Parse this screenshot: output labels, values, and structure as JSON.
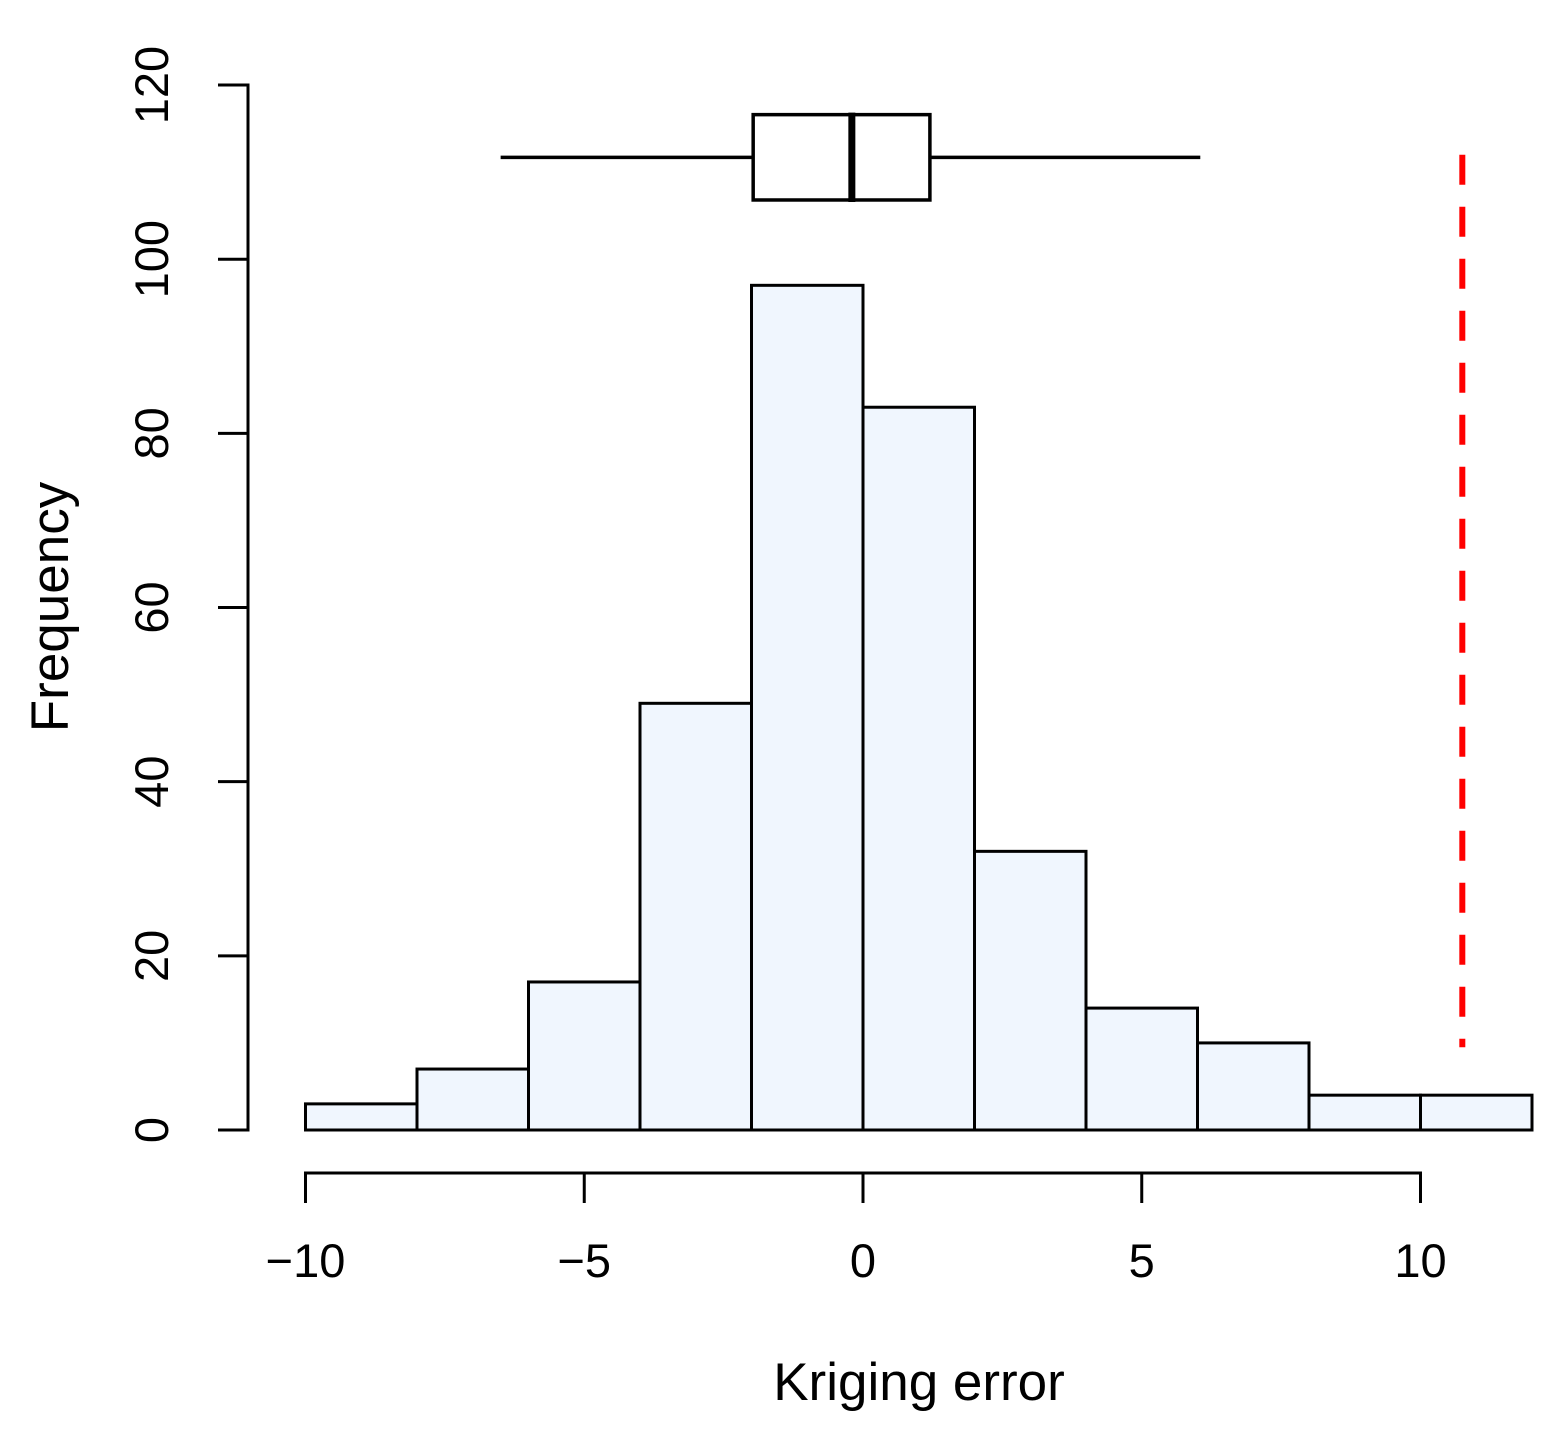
{
  "chart_data": {
    "type": "histogram",
    "title": "",
    "xlabel": "Kriging error",
    "ylabel": "Frequency",
    "xlim": [
      -10,
      12
    ],
    "ylim": [
      0,
      120
    ],
    "grid": false,
    "bin_start": -10,
    "bin_width": 2,
    "categories": [
      "[-10,-8]",
      "[-8,-6]",
      "[-6,-4]",
      "[-4,-2]",
      "[-2,0]",
      "[0,2]",
      "[2,4]",
      "[4,6]",
      "[6,8]",
      "[8,10]",
      "[10,12]"
    ],
    "values": [
      3,
      7,
      17,
      49,
      97,
      83,
      32,
      14,
      10,
      4,
      4
    ],
    "x_tick_values": [
      -10,
      -5,
      0,
      5,
      10
    ],
    "x_tick_labels": [
      "−10",
      "−5",
      "0",
      "5",
      "10"
    ],
    "y_tick_values": [
      0,
      20,
      40,
      60,
      80,
      100,
      120
    ],
    "y_tick_labels": [
      "0",
      "20",
      "40",
      "60",
      "80",
      "100",
      "120"
    ],
    "colors": {
      "bar_fill": "#F0F6FE",
      "bar_stroke": "#000000",
      "axis": "#000000",
      "boxplot_fill": "#FFFFFF",
      "vline": "#FF0000"
    },
    "boxplot": {
      "whisker_low": -6.5,
      "q1": -1.97,
      "median": -0.2,
      "q3": 1.2,
      "whisker_high": 6.05,
      "center_y": 111.7,
      "box_half_height": 4.9
    },
    "vline": {
      "x": 10.75,
      "y_from": 9.5,
      "y_to": 112,
      "style": "dashed"
    }
  }
}
